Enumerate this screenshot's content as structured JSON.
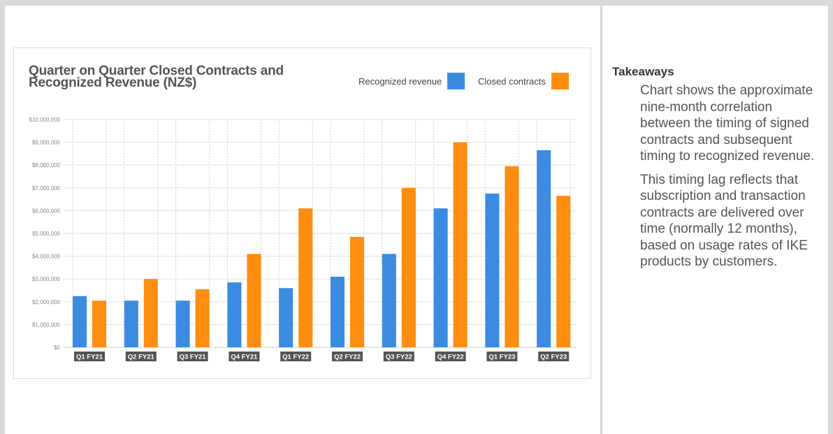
{
  "chart_data": {
    "type": "bar",
    "title": "Quarter on Quarter Closed Contracts and Recognized Revenue (NZ$)",
    "categories": [
      "Q1 FY21",
      "Q2 FY21",
      "Q3 FY21",
      "Q4 FY21",
      "Q1 FY22",
      "Q2 FY22",
      "Q3 FY22",
      "Q4 FY22",
      "Q1 FY23",
      "Q2 FY23"
    ],
    "series": [
      {
        "name": "Recognized revenue",
        "color": "#3b8ce0",
        "values": [
          2250000,
          2050000,
          2050000,
          2850000,
          2600000,
          3100000,
          4100000,
          6100000,
          6750000,
          8650000
        ]
      },
      {
        "name": "Closed contracts",
        "color": "#ff8d0f",
        "values": [
          2050000,
          3000000,
          2550000,
          4100000,
          6100000,
          4850000,
          7000000,
          9000000,
          7950000,
          6650000
        ]
      }
    ],
    "ylim": [
      0,
      10000000
    ],
    "yticks": [
      "$0",
      "$1,000,000",
      "$2,000,000",
      "$3,000,000",
      "$4,000,000",
      "$5,000,000",
      "$6,000,000",
      "$7,000,000",
      "$8,000,000",
      "$9,000,000",
      "$10,000,000"
    ],
    "grid": true,
    "legend_position": "top-right",
    "xlabel": "",
    "ylabel": ""
  },
  "panel": {
    "heading": "Takeaways",
    "paragraphs": [
      "Chart shows the approximate nine-month correlation between the timing of signed contracts and subsequent timing to recognized revenue.",
      "This timing lag reflects that subscription and transaction contracts are delivered over time (normally 12 months), based on usage rates of IKE products by customers."
    ]
  }
}
